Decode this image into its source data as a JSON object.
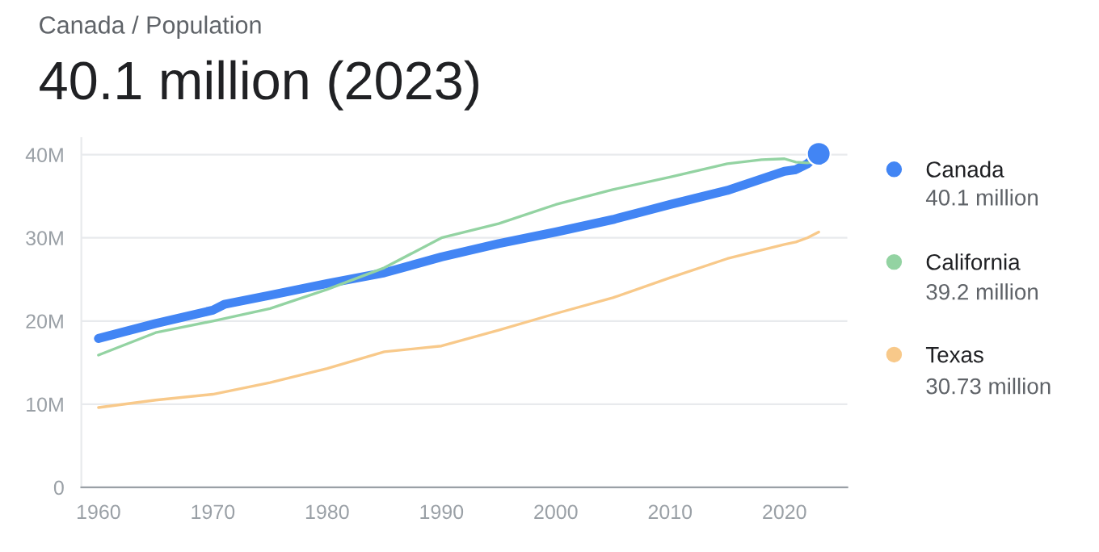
{
  "chart_data": {
    "type": "line",
    "title": "Canada / Population",
    "subtitle": "40.1 million (2023)",
    "series": [
      {
        "name": "Canada",
        "color": "#4285f4",
        "x": [
          1960,
          1965,
          1970,
          1971,
          1975,
          1980,
          1985,
          1990,
          1995,
          2000,
          2005,
          2010,
          2015,
          2020,
          2021,
          2022,
          2023
        ],
        "values": [
          17.9,
          19.7,
          21.3,
          22.0,
          23.1,
          24.5,
          25.8,
          27.7,
          29.3,
          30.7,
          32.2,
          34.0,
          35.7,
          38.0,
          38.2,
          38.9,
          40.1
        ]
      },
      {
        "name": "California",
        "color": "#93d3a2",
        "x": [
          1960,
          1965,
          1970,
          1975,
          1980,
          1985,
          1990,
          1995,
          2000,
          2005,
          2010,
          2015,
          2018,
          2020,
          2021,
          2022,
          2023
        ],
        "values": [
          15.9,
          18.6,
          20.0,
          21.5,
          23.8,
          26.4,
          30.0,
          31.7,
          34.0,
          35.8,
          37.3,
          38.9,
          39.4,
          39.5,
          39.1,
          39.0,
          39.2
        ]
      },
      {
        "name": "Texas",
        "color": "#f8c98a",
        "x": [
          1960,
          1965,
          1970,
          1975,
          1980,
          1985,
          1990,
          1995,
          2000,
          2005,
          2010,
          2015,
          2020,
          2021,
          2022,
          2023
        ],
        "values": [
          9.6,
          10.5,
          11.2,
          12.6,
          14.3,
          16.3,
          17.0,
          18.9,
          20.9,
          22.8,
          25.2,
          27.5,
          29.2,
          29.5,
          30.0,
          30.7
        ]
      },
      {
        "type": "scatter",
        "color": "#4285f4",
        "x": [
          2023
        ],
        "values": [
          40.1
        ]
      }
    ],
    "annotations": [
      "40.1 million",
      "39.2 million",
      "30.73 million"
    ],
    "xlim": [
      1958.5,
      2025.5
    ],
    "xticks": [
      1960,
      1970,
      1980,
      1990,
      2000,
      2010,
      2020
    ],
    "ylim": [
      0,
      42
    ],
    "yticks": [
      0,
      {
        "value": 10,
        "label": "10M"
      },
      {
        "value": 20,
        "label": "20M"
      },
      {
        "value": 30,
        "label": "30M"
      },
      {
        "value": 40,
        "label": "40M"
      }
    ],
    "grid": "y",
    "legend": "right"
  }
}
